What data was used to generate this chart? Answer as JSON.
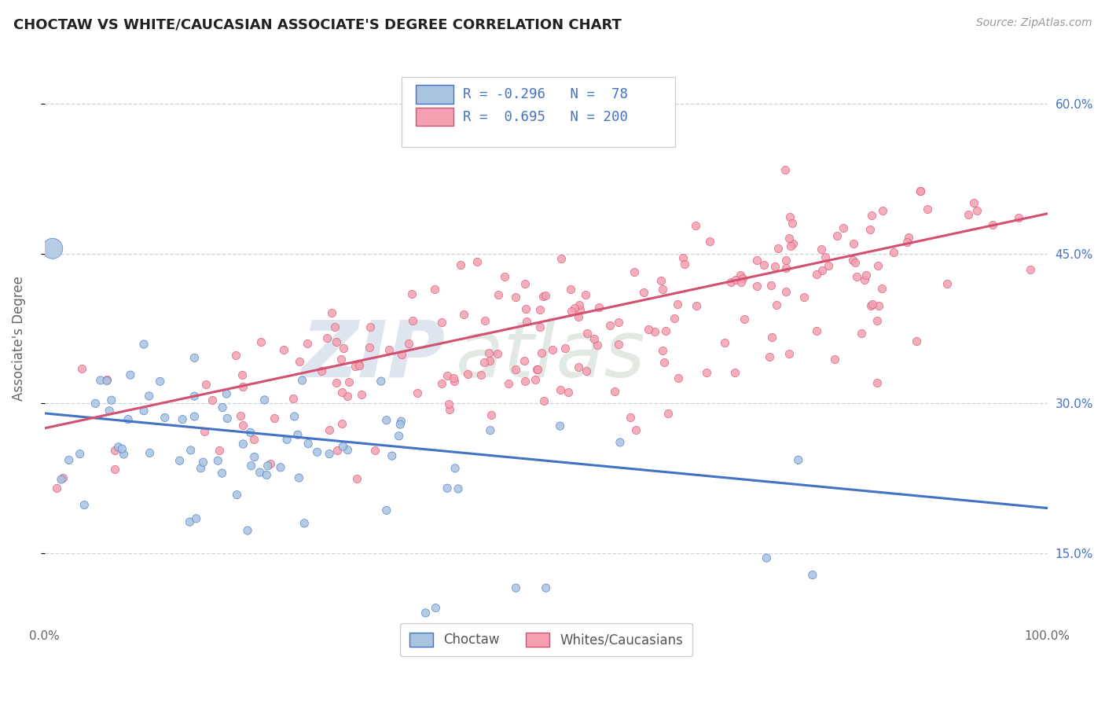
{
  "title": "CHOCTAW VS WHITE/CAUCASIAN ASSOCIATE'S DEGREE CORRELATION CHART",
  "source_text": "Source: ZipAtlas.com",
  "ylabel_label": "Associate's Degree",
  "legend_labels": [
    "Choctaw",
    "Whites/Caucasians"
  ],
  "blue_color": "#a8c4e0",
  "pink_color": "#f4a0b0",
  "blue_line_color": "#4472c4",
  "pink_line_color": "#d45070",
  "blue_R": -0.296,
  "blue_N": 78,
  "pink_R": 0.695,
  "pink_N": 200,
  "xlim": [
    0.0,
    1.0
  ],
  "ylim": [
    0.08,
    0.65
  ],
  "blue_line": [
    0.0,
    0.29,
    1.0,
    0.195
  ],
  "pink_line": [
    0.0,
    0.275,
    1.0,
    0.49
  ],
  "yticks": [
    0.15,
    0.3,
    0.45,
    0.6
  ],
  "ytick_labels": [
    "15.0%",
    "30.0%",
    "45.0%",
    "60.0%"
  ],
  "xticks": [
    0.0,
    1.0
  ],
  "xtick_labels": [
    "0.0%",
    "100.0%"
  ]
}
